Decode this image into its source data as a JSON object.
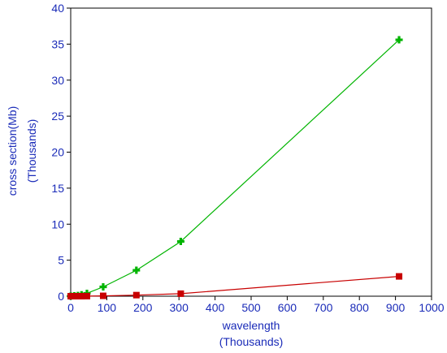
{
  "chart_data": {
    "type": "line",
    "title": "",
    "xlabel": "wavelength",
    "xlabel_sub": "(Thousands)",
    "ylabel": "cross section(Mb)",
    "ylabel_sub": "(Thousands)",
    "xlim": [
      0,
      1000
    ],
    "ylim": [
      0,
      40
    ],
    "x_ticks": [
      0,
      100,
      200,
      300,
      400,
      500,
      600,
      700,
      800,
      900,
      1000
    ],
    "y_ticks": [
      0,
      5,
      10,
      15,
      20,
      25,
      30,
      35,
      40
    ],
    "grid": false,
    "legend": "none",
    "series": [
      {
        "color": "#00b400",
        "marker": "plus",
        "x": [
          0,
          10,
          20,
          30,
          45,
          90,
          182,
          305,
          910
        ],
        "y": [
          0.02,
          0.05,
          0.1,
          0.2,
          0.4,
          1.3,
          3.6,
          7.6,
          35.6
        ]
      },
      {
        "color": "#c80000",
        "marker": "square",
        "x": [
          0,
          10,
          20,
          30,
          45,
          90,
          182,
          305,
          910
        ],
        "y": [
          0,
          0,
          0,
          0,
          0.01,
          0.05,
          0.15,
          0.35,
          2.75
        ]
      }
    ]
  }
}
